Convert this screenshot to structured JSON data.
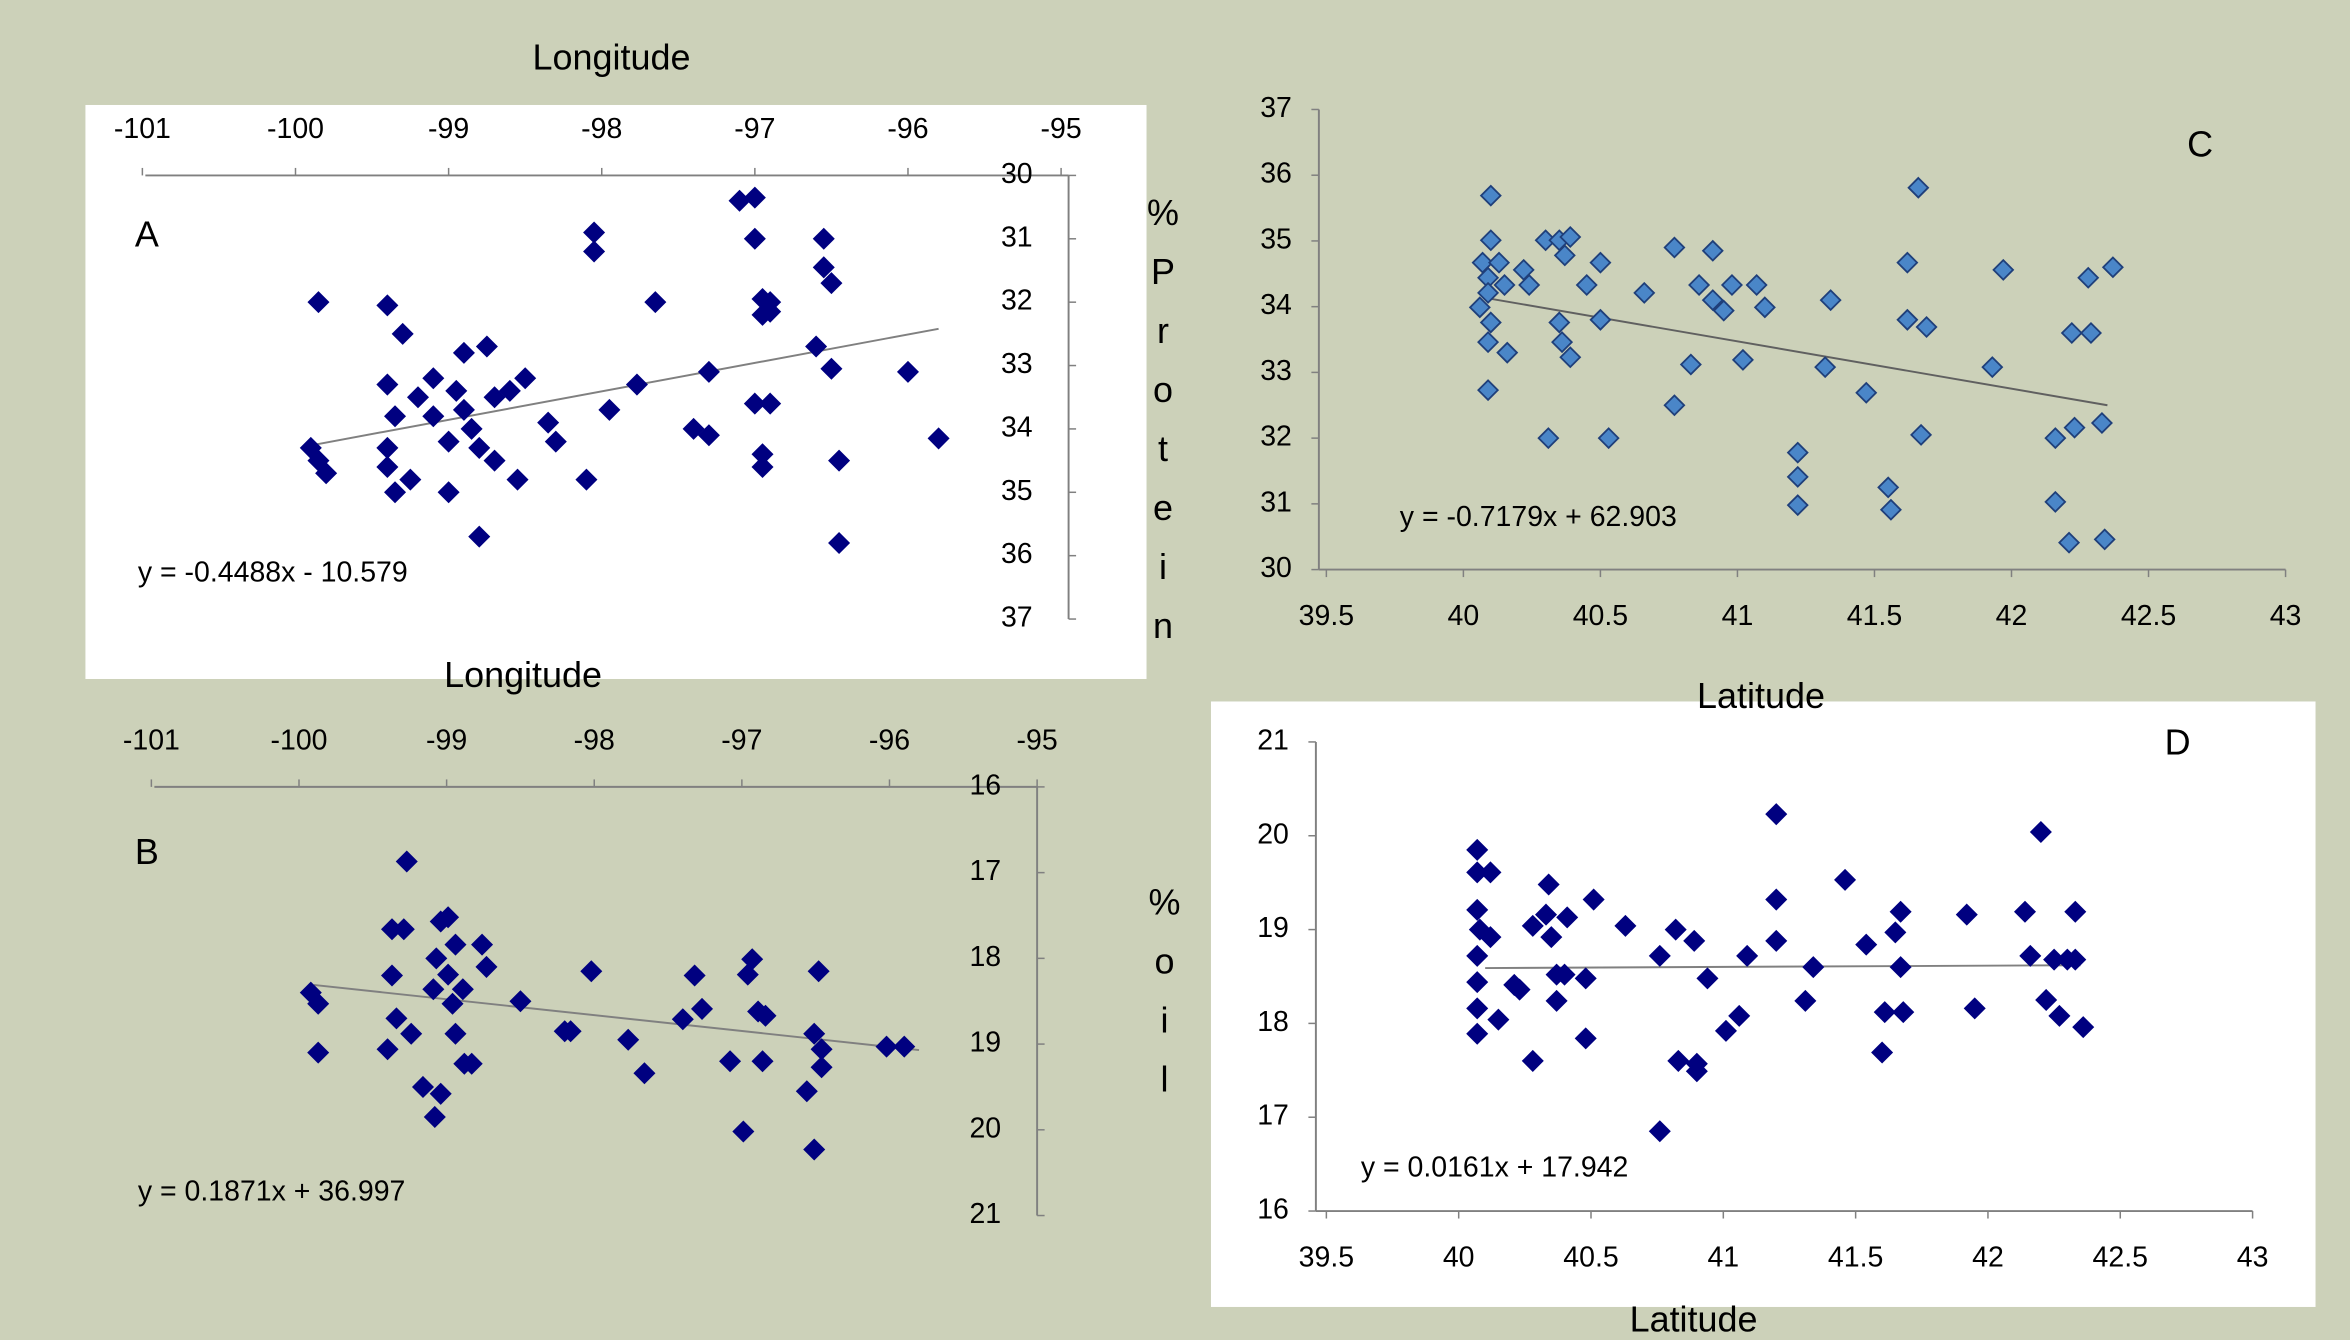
{
  "chart_data": [
    {
      "type": "scatter",
      "panel_label": "A",
      "xlabel": "Longitude",
      "ylabel": "%Protein",
      "equation": "y = -0.4488x - 10.579",
      "x_axis_position": "top",
      "y_axis_position": "right",
      "y_inverted": true,
      "xlim": [
        -101,
        -95
      ],
      "xticks": [
        -101,
        -100,
        -99,
        -98,
        -97,
        -96,
        -95
      ],
      "ylim": [
        30,
        37
      ],
      "yticks": [
        30,
        31,
        32,
        33,
        34,
        35,
        36,
        37
      ],
      "color": "#000080",
      "edge_color": "#000080",
      "trendline_color": "#808080",
      "x": [
        -99.9,
        -99.85,
        -99.8,
        -99.85,
        -99.4,
        -99.3,
        -99.4,
        -99.35,
        -99.4,
        -99.4,
        -99.35,
        -99.25,
        -99.2,
        -99.1,
        -99.1,
        -99.0,
        -99.0,
        -98.9,
        -98.95,
        -98.9,
        -98.85,
        -98.8,
        -98.8,
        -98.75,
        -98.7,
        -98.7,
        -98.6,
        -98.55,
        -98.5,
        -98.35,
        -98.3,
        -98.1,
        -98.05,
        -98.05,
        -97.95,
        -97.65,
        -97.77,
        -97.4,
        -97.3,
        -97.3,
        -97.1,
        -97.0,
        -97.0,
        -97.0,
        -96.9,
        -96.95,
        -96.9,
        -96.9,
        -96.95,
        -96.95,
        -96.95,
        -96.6,
        -96.55,
        -96.55,
        -96.5,
        -96.5,
        -96.45,
        -96.45,
        -96.0,
        -95.8
      ],
      "values": [
        34.3,
        34.5,
        34.7,
        32.0,
        32.05,
        32.5,
        33.3,
        33.8,
        34.3,
        34.6,
        35.0,
        34.8,
        33.5,
        33.2,
        33.8,
        34.2,
        35.0,
        32.8,
        33.4,
        33.7,
        34.0,
        34.3,
        35.7,
        32.7,
        33.5,
        34.5,
        33.4,
        34.8,
        33.2,
        33.9,
        34.2,
        34.8,
        30.9,
        31.2,
        33.7,
        32.0,
        33.3,
        34.0,
        34.1,
        33.1,
        30.4,
        30.35,
        31.0,
        33.6,
        33.6,
        31.95,
        32.0,
        32.15,
        32.2,
        34.4,
        34.6,
        32.7,
        31.0,
        31.45,
        31.7,
        33.05,
        34.5,
        35.8,
        33.1,
        34.15
      ],
      "trendline": {
        "x": [
          -99.9,
          -95.8
        ],
        "y": [
          34.26,
          32.42
        ]
      }
    },
    {
      "type": "scatter",
      "panel_label": "B",
      "xlabel": "Longitude",
      "ylabel": "%oil",
      "equation": "y = 0.1871x + 36.997",
      "x_axis_position": "top",
      "y_axis_position": "right",
      "y_inverted": true,
      "xlim": [
        -101,
        -95
      ],
      "xticks": [
        -101,
        -100,
        -99,
        -98,
        -97,
        -96,
        -95
      ],
      "ylim": [
        16,
        21
      ],
      "yticks": [
        16,
        17,
        18,
        19,
        20,
        21
      ],
      "color": "#000080",
      "edge_color": "#000080",
      "trendline_color": "#808080",
      "x": [
        -99.92,
        -99.87,
        -99.87,
        -99.27,
        -99.37,
        -99.37,
        -99.4,
        -99.34,
        -99.29,
        -99.24,
        -99.16,
        -99.08,
        -99.04,
        -99.09,
        -99.07,
        -99.04,
        -98.99,
        -98.99,
        -98.96,
        -98.94,
        -98.88,
        -98.83,
        -98.94,
        -98.89,
        -98.76,
        -98.73,
        -98.5,
        -98.2,
        -98.16,
        -98.02,
        -97.77,
        -97.66,
        -97.4,
        -97.32,
        -97.27,
        -97.08,
        -96.99,
        -96.96,
        -96.93,
        -96.89,
        -96.86,
        -96.84,
        -96.56,
        -96.51,
        -96.48,
        -96.51,
        -96.46,
        -96.46,
        -96.02,
        -95.9
      ],
      "values": [
        18.4,
        18.53,
        19.1,
        16.87,
        17.66,
        18.2,
        19.06,
        18.7,
        17.66,
        18.88,
        19.5,
        19.85,
        19.58,
        18.36,
        18.0,
        17.57,
        17.52,
        18.19,
        18.53,
        18.88,
        19.23,
        19.23,
        17.84,
        18.36,
        17.84,
        18.1,
        18.5,
        18.85,
        18.85,
        18.15,
        18.95,
        19.34,
        18.71,
        18.2,
        18.59,
        19.2,
        20.02,
        18.19,
        18.01,
        18.62,
        19.2,
        18.67,
        19.55,
        18.88,
        18.15,
        20.23,
        19.27,
        19.06,
        19.03,
        19.03
      ],
      "trendline": {
        "x": [
          -99.9,
          -95.8
        ],
        "y": [
          18.31,
          19.07
        ]
      }
    },
    {
      "type": "scatter",
      "panel_label": "C",
      "xlabel": "Latitude",
      "equation": "y = -0.7179x + 62.903",
      "x_axis_position": "bottom",
      "y_axis_position": "left",
      "y_inverted": false,
      "xlim": [
        39.5,
        43
      ],
      "xticks": [
        39.5,
        40,
        40.5,
        41,
        41.5,
        42,
        42.5,
        43
      ],
      "ylim": [
        30,
        37
      ],
      "yticks": [
        30,
        31,
        32,
        33,
        34,
        35,
        36,
        37
      ],
      "color": "#4a86c8",
      "edge_color": "#1f3f7a",
      "trendline_color": "#606060",
      "x": [
        40.1,
        40.1,
        40.07,
        40.09,
        40.09,
        40.06,
        40.1,
        40.09,
        40.09,
        40.16,
        40.13,
        40.15,
        40.24,
        40.22,
        40.3,
        40.35,
        40.39,
        40.37,
        40.35,
        40.36,
        40.39,
        40.31,
        40.45,
        40.5,
        40.5,
        40.53,
        40.66,
        40.77,
        40.77,
        40.83,
        40.86,
        40.91,
        40.91,
        40.95,
        40.98,
        41.02,
        41.07,
        41.1,
        41.22,
        41.22,
        41.22,
        41.32,
        41.34,
        41.47,
        41.55,
        41.56,
        41.62,
        41.62,
        41.66,
        41.69,
        41.67,
        41.93,
        41.97,
        42.16,
        42.16,
        42.21,
        42.22,
        42.23,
        42.28,
        42.29,
        42.33,
        42.34,
        42.37
      ],
      "values": [
        35.69,
        35.01,
        34.67,
        34.44,
        34.21,
        33.99,
        33.76,
        33.46,
        32.73,
        33.3,
        34.67,
        34.33,
        34.33,
        34.56,
        35.01,
        35.01,
        35.06,
        34.78,
        33.76,
        33.46,
        33.23,
        32.0,
        34.33,
        34.67,
        33.8,
        32.0,
        34.21,
        34.9,
        32.5,
        33.12,
        34.33,
        34.85,
        34.1,
        33.94,
        34.33,
        33.19,
        34.33,
        33.99,
        31.78,
        31.41,
        30.98,
        33.08,
        34.1,
        32.69,
        31.25,
        30.91,
        34.67,
        33.8,
        35.81,
        33.69,
        32.05,
        33.08,
        34.56,
        32.0,
        31.03,
        30.41,
        33.6,
        32.16,
        34.44,
        33.6,
        32.23,
        30.46,
        34.6
      ],
      "trendline": {
        "x": [
          40.1,
          42.35
        ],
        "y": [
          34.12,
          32.5
        ]
      }
    },
    {
      "type": "scatter",
      "panel_label": "D",
      "xlabel": "Latitude",
      "equation": "y = 0.0161x + 17.942",
      "x_axis_position": "bottom",
      "y_axis_position": "left",
      "y_inverted": false,
      "xlim": [
        39.5,
        43
      ],
      "xticks": [
        39.5,
        40,
        40.5,
        41,
        41.5,
        42,
        42.5,
        43
      ],
      "ylim": [
        16,
        21
      ],
      "yticks": [
        16,
        17,
        18,
        19,
        20,
        21
      ],
      "color": "#000080",
      "edge_color": "#000080",
      "trendline_color": "#808080",
      "x": [
        40.07,
        40.07,
        40.12,
        40.07,
        40.08,
        40.07,
        40.07,
        40.07,
        40.07,
        40.12,
        40.15,
        40.21,
        40.23,
        40.28,
        40.28,
        40.33,
        40.34,
        40.35,
        40.37,
        40.37,
        40.41,
        40.4,
        40.48,
        40.48,
        40.51,
        40.63,
        40.76,
        40.76,
        40.82,
        40.83,
        40.89,
        40.9,
        40.9,
        40.94,
        41.01,
        41.06,
        41.09,
        41.2,
        41.2,
        41.2,
        41.31,
        41.34,
        41.46,
        41.54,
        41.6,
        41.61,
        41.65,
        41.67,
        41.67,
        41.68,
        41.92,
        41.95,
        42.14,
        42.16,
        42.2,
        42.22,
        42.25,
        42.27,
        42.3,
        42.33,
        42.33,
        42.36
      ],
      "values": [
        19.85,
        19.61,
        19.61,
        19.21,
        19.0,
        18.72,
        18.44,
        18.16,
        17.89,
        18.92,
        18.04,
        18.41,
        18.36,
        17.6,
        19.04,
        19.16,
        19.48,
        18.92,
        18.52,
        18.24,
        19.13,
        18.52,
        18.48,
        17.84,
        19.32,
        19.04,
        18.72,
        16.85,
        19.0,
        17.6,
        18.88,
        17.57,
        17.49,
        18.48,
        17.92,
        18.08,
        18.72,
        20.23,
        19.32,
        18.88,
        18.24,
        18.6,
        19.53,
        18.84,
        17.69,
        18.12,
        18.97,
        19.19,
        18.6,
        18.12,
        19.16,
        18.16,
        19.19,
        18.72,
        20.04,
        18.25,
        18.68,
        18.08,
        18.68,
        19.19,
        18.68,
        17.96
      ],
      "trendline": {
        "x": [
          40.1,
          42.35
        ],
        "y": [
          18.59,
          18.62
        ]
      }
    }
  ]
}
